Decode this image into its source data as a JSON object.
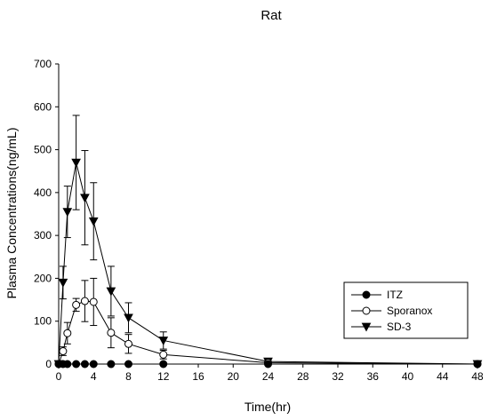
{
  "chart_data": {
    "type": "line",
    "title": "Rat",
    "xlabel": "Time(hr)",
    "ylabel": "Plasma Concentrations(ng/mL)",
    "xlim": [
      0,
      48
    ],
    "ylim": [
      0,
      700
    ],
    "xticks": [
      0,
      4,
      8,
      12,
      16,
      20,
      24,
      28,
      32,
      36,
      40,
      44,
      48
    ],
    "yticks": [
      0,
      100,
      200,
      300,
      400,
      500,
      600,
      700
    ],
    "grid": false,
    "legend_position": "lower-right",
    "series": [
      {
        "name": "ITZ",
        "marker": "filled-circle",
        "x": [
          0,
          0.5,
          1,
          2,
          3,
          4,
          6,
          8,
          12,
          24,
          48
        ],
        "y": [
          0,
          0,
          0,
          0,
          0,
          0,
          0,
          0,
          0,
          0,
          0
        ],
        "err": [
          0,
          0,
          0,
          0,
          0,
          0,
          0,
          0,
          0,
          0,
          0
        ]
      },
      {
        "name": "Sporanox",
        "marker": "open-circle",
        "x": [
          0,
          0.5,
          1,
          2,
          3,
          4,
          6,
          8,
          12,
          24,
          48
        ],
        "y": [
          0,
          30,
          72,
          138,
          147,
          145,
          73,
          47,
          22,
          3,
          0
        ],
        "err": [
          0,
          10,
          25,
          15,
          48,
          55,
          35,
          22,
          10,
          2,
          0
        ]
      },
      {
        "name": "SD-3",
        "marker": "filled-triangle-down",
        "x": [
          0,
          0.5,
          1,
          2,
          3,
          4,
          6,
          8,
          12,
          24,
          48
        ],
        "y": [
          0,
          190,
          355,
          470,
          388,
          333,
          170,
          108,
          55,
          6,
          0
        ],
        "err": [
          0,
          38,
          60,
          110,
          110,
          90,
          58,
          35,
          20,
          3,
          0
        ]
      }
    ]
  }
}
